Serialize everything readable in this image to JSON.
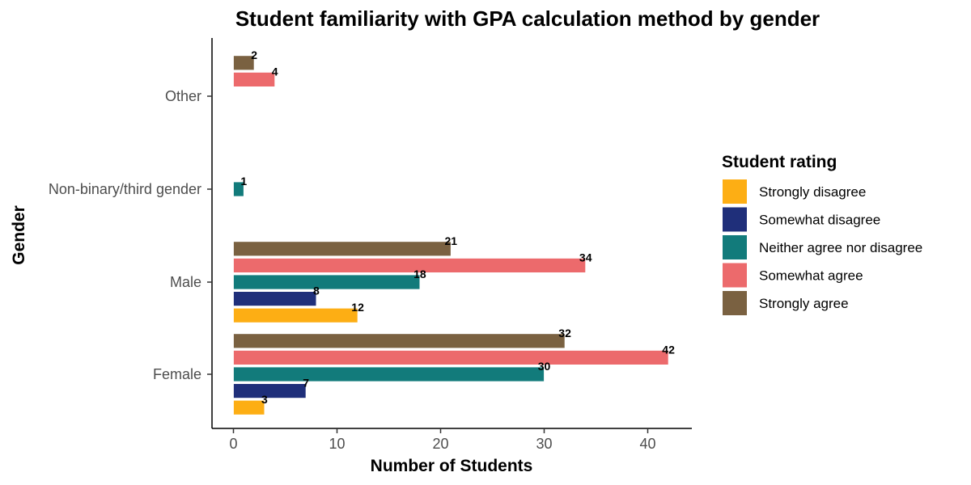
{
  "chart_data": {
    "type": "bar",
    "orientation": "horizontal",
    "title": "Student familiarity with GPA calculation method by gender",
    "xlabel": "Number of Students",
    "ylabel": "Gender",
    "categories": [
      "Female",
      "Male",
      "Non-binary/third gender",
      "Other"
    ],
    "xlim": [
      0,
      44
    ],
    "xticks": [
      0,
      10,
      20,
      30,
      40
    ],
    "grid": false,
    "legend": {
      "title": "Student rating",
      "position": "right"
    },
    "series": [
      {
        "name": "Strongly disagree",
        "color": "#FDAE14",
        "values": [
          3,
          12,
          null,
          null
        ]
      },
      {
        "name": "Somewhat disagree",
        "color": "#1F2F7A",
        "values": [
          7,
          8,
          null,
          null
        ]
      },
      {
        "name": "Neither agree nor disagree",
        "color": "#127B7B",
        "values": [
          30,
          18,
          1,
          null
        ]
      },
      {
        "name": "Somewhat agree",
        "color": "#EC6A6C",
        "values": [
          42,
          34,
          null,
          4
        ]
      },
      {
        "name": "Strongly agree",
        "color": "#7A6141",
        "values": [
          32,
          21,
          null,
          2
        ]
      }
    ]
  }
}
